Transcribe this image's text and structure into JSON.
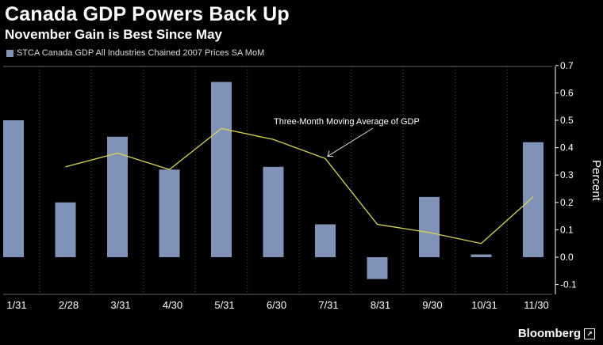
{
  "header": {
    "title": "Canada GDP Powers Back Up",
    "subtitle": "November Gain is Best Since May"
  },
  "legend": {
    "label": "STCA Canada GDP All Industries Chained 2007 Prices SA MoM"
  },
  "brand": {
    "name": "Bloomberg",
    "icon": "bloomberg-logo-icon"
  },
  "colors": {
    "background": "#000000",
    "bar": "#7f93b8",
    "line": "#d8d84a",
    "grid": "#555555",
    "text": "#ffffff"
  },
  "chart_data": {
    "type": "bar",
    "categories": [
      "1/31",
      "2/28",
      "3/31",
      "4/30",
      "5/31",
      "6/30",
      "7/31",
      "8/31",
      "9/30",
      "10/31",
      "11/30"
    ],
    "series": [
      {
        "type": "bar",
        "values": [
          0.5,
          0.2,
          0.44,
          0.32,
          0.64,
          0.33,
          0.12,
          -0.08,
          0.22,
          0.01,
          0.42
        ]
      },
      {
        "type": "line",
        "name": "Three-Month Moving Average of GDP",
        "values": [
          null,
          0.33,
          0.38,
          0.32,
          0.47,
          0.43,
          0.36,
          0.12,
          0.09,
          0.05,
          0.22
        ]
      }
    ],
    "ylabel": "Percent",
    "ylim": [
      -0.15,
      0.72
    ],
    "yticks": [
      0.7,
      0.6,
      0.5,
      0.4,
      0.3,
      0.2,
      0.1,
      0.0,
      -0.1
    ],
    "ytick_labels": [
      "0.7",
      "0.6",
      "0.5",
      "0.4",
      "0.3",
      "0.2",
      "0.1",
      "0.0",
      "-0.1"
    ],
    "y_axis_side": "right",
    "grid": "vertical dotted",
    "annotation": {
      "text": "Three-Month Moving Average of GDP",
      "target_index": 6
    }
  }
}
